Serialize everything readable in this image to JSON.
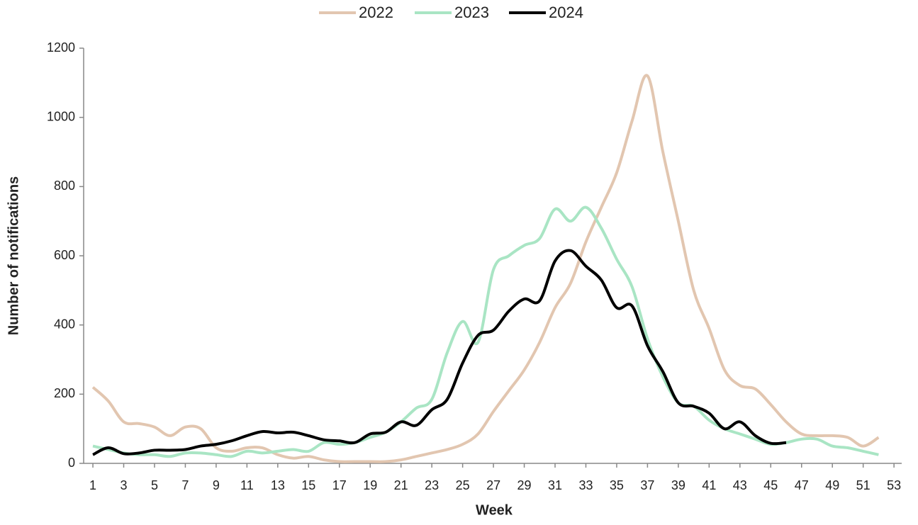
{
  "chart_data": {
    "type": "line",
    "x_label": "Week",
    "y_label": "Number of notifications",
    "x": [
      1,
      2,
      3,
      4,
      5,
      6,
      7,
      8,
      9,
      10,
      11,
      12,
      13,
      14,
      15,
      16,
      17,
      18,
      19,
      20,
      21,
      22,
      23,
      24,
      25,
      26,
      27,
      28,
      29,
      30,
      31,
      32,
      33,
      34,
      35,
      36,
      37,
      38,
      39,
      40,
      41,
      42,
      43,
      44,
      45,
      46,
      47,
      48,
      49,
      50,
      51,
      52
    ],
    "xlim": [
      0.4,
      53.5
    ],
    "xticks": [
      1,
      3,
      5,
      7,
      9,
      11,
      13,
      15,
      17,
      19,
      21,
      23,
      25,
      27,
      29,
      31,
      33,
      35,
      37,
      39,
      41,
      43,
      45,
      47,
      49,
      51,
      53
    ],
    "ylim": [
      0,
      1200
    ],
    "yticks": [
      0,
      200,
      400,
      600,
      800,
      1000,
      1200
    ],
    "legend": "top",
    "series": [
      {
        "name": "2022",
        "color": "#e2c6b0",
        "values": [
          220,
          180,
          120,
          115,
          105,
          80,
          105,
          100,
          45,
          35,
          45,
          45,
          25,
          15,
          20,
          10,
          5,
          5,
          5,
          5,
          10,
          20,
          30,
          40,
          55,
          85,
          150,
          210,
          270,
          350,
          450,
          520,
          640,
          740,
          840,
          990,
          1120,
          900,
          700,
          500,
          390,
          270,
          225,
          215,
          170,
          120,
          85,
          80,
          80,
          75,
          50,
          75
        ]
      },
      {
        "name": "2023",
        "color": "#a9e5c4",
        "values": [
          50,
          40,
          30,
          25,
          25,
          20,
          30,
          30,
          25,
          20,
          35,
          30,
          35,
          40,
          35,
          60,
          55,
          60,
          75,
          90,
          120,
          160,
          185,
          320,
          410,
          350,
          560,
          600,
          630,
          650,
          735,
          700,
          740,
          680,
          590,
          510,
          360,
          250,
          175,
          165,
          125,
          100,
          85,
          70,
          55,
          60,
          70,
          70,
          50,
          45,
          35,
          25
        ]
      },
      {
        "name": "2024",
        "color": "#000000",
        "values": [
          25,
          45,
          28,
          30,
          38,
          38,
          40,
          50,
          55,
          65,
          80,
          92,
          88,
          90,
          80,
          68,
          65,
          60,
          85,
          90,
          120,
          110,
          155,
          185,
          290,
          370,
          385,
          440,
          475,
          470,
          585,
          615,
          570,
          530,
          450,
          455,
          340,
          265,
          175,
          165,
          145,
          100,
          120,
          80,
          58,
          60,
          null,
          null,
          null,
          null,
          null,
          null
        ]
      }
    ]
  }
}
